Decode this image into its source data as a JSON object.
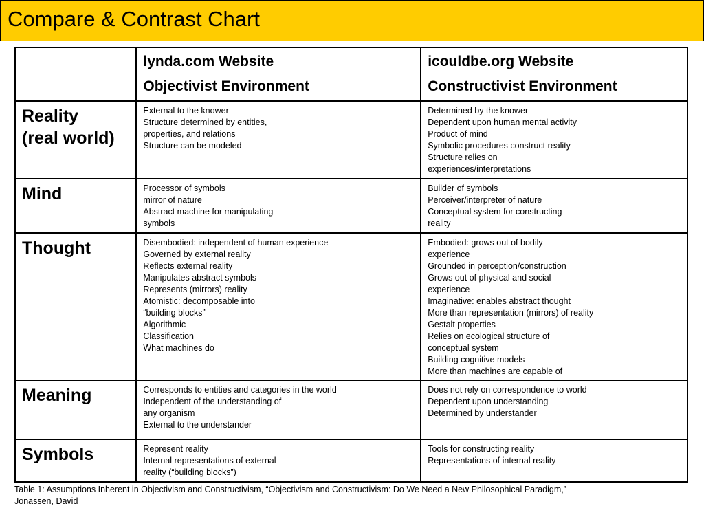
{
  "title": "Compare & Contrast Chart",
  "table": {
    "header": {
      "col1": [
        "lynda.com Website",
        "Objectivist Environment"
      ],
      "col2": [
        "icouldbe.org Website",
        "Constructivist Environment"
      ]
    },
    "rows": [
      {
        "label": [
          "Reality",
          "(real world)"
        ],
        "objectivist": [
          "External to the knower",
          "Structure determined by entities,",
          "properties, and relations",
          "Structure can be modeled"
        ],
        "constructivist": [
          "Determined by the knower",
          "Dependent upon human mental activity",
          "Product of mind",
          "Symbolic procedures construct reality",
          "Structure relies on",
          "experiences/interpretations"
        ]
      },
      {
        "label": [
          "Mind"
        ],
        "objectivist": [
          "Processor of symbols",
          "mirror of nature",
          "Abstract machine for manipulating",
          "symbols"
        ],
        "constructivist": [
          "Builder of symbols",
          "Perceiver/interpreter of nature",
          "Conceptual system for constructing",
          "reality"
        ]
      },
      {
        "label": [
          "Thought"
        ],
        "objectivist": [
          "Disembodied: independent of human experience",
          "Governed by external reality",
          "Reflects external reality",
          "Manipulates abstract symbols",
          "Represents (mirrors) reality",
          "Atomistic: decomposable into",
          "“building blocks”",
          "Algorithmic",
          "Classification",
          "What machines do"
        ],
        "constructivist": [
          "Embodied: grows out of bodily",
          "experience",
          "Grounded in perception/construction",
          "Grows out of physical and social",
          "experience",
          "Imaginative: enables abstract thought",
          "More than representation (mirrors) of reality",
          "Gestalt properties",
          "Relies on ecological structure of",
          "conceptual system",
          "Building cognitive models",
          "More than machines are capable of"
        ]
      },
      {
        "label": [
          "Meaning"
        ],
        "objectivist": [
          "Corresponds to entities and categories in the world",
          "Independent of the understanding of",
          "any organism",
          "External to the understander"
        ],
        "constructivist": [
          "Does not rely on correspondence to world",
          "Dependent upon understanding",
          "Determined by understander"
        ]
      },
      {
        "label": [
          "Symbols"
        ],
        "objectivist": [
          "Represent reality",
          "Internal representations of external",
          "reality (“building blocks”)"
        ],
        "constructivist": [
          "Tools for constructing reality",
          "Representations of internal reality"
        ]
      }
    ]
  },
  "caption": [
    "Table 1: Assumptions Inherent in Objectivism and Constructivism, “Objectivism and Constructivism: Do We Need a New Philosophical Paradigm,”",
    "Jonassen, David"
  ],
  "colors": {
    "title_bar": "#ffcc00",
    "border": "#000000",
    "text": "#000000"
  }
}
